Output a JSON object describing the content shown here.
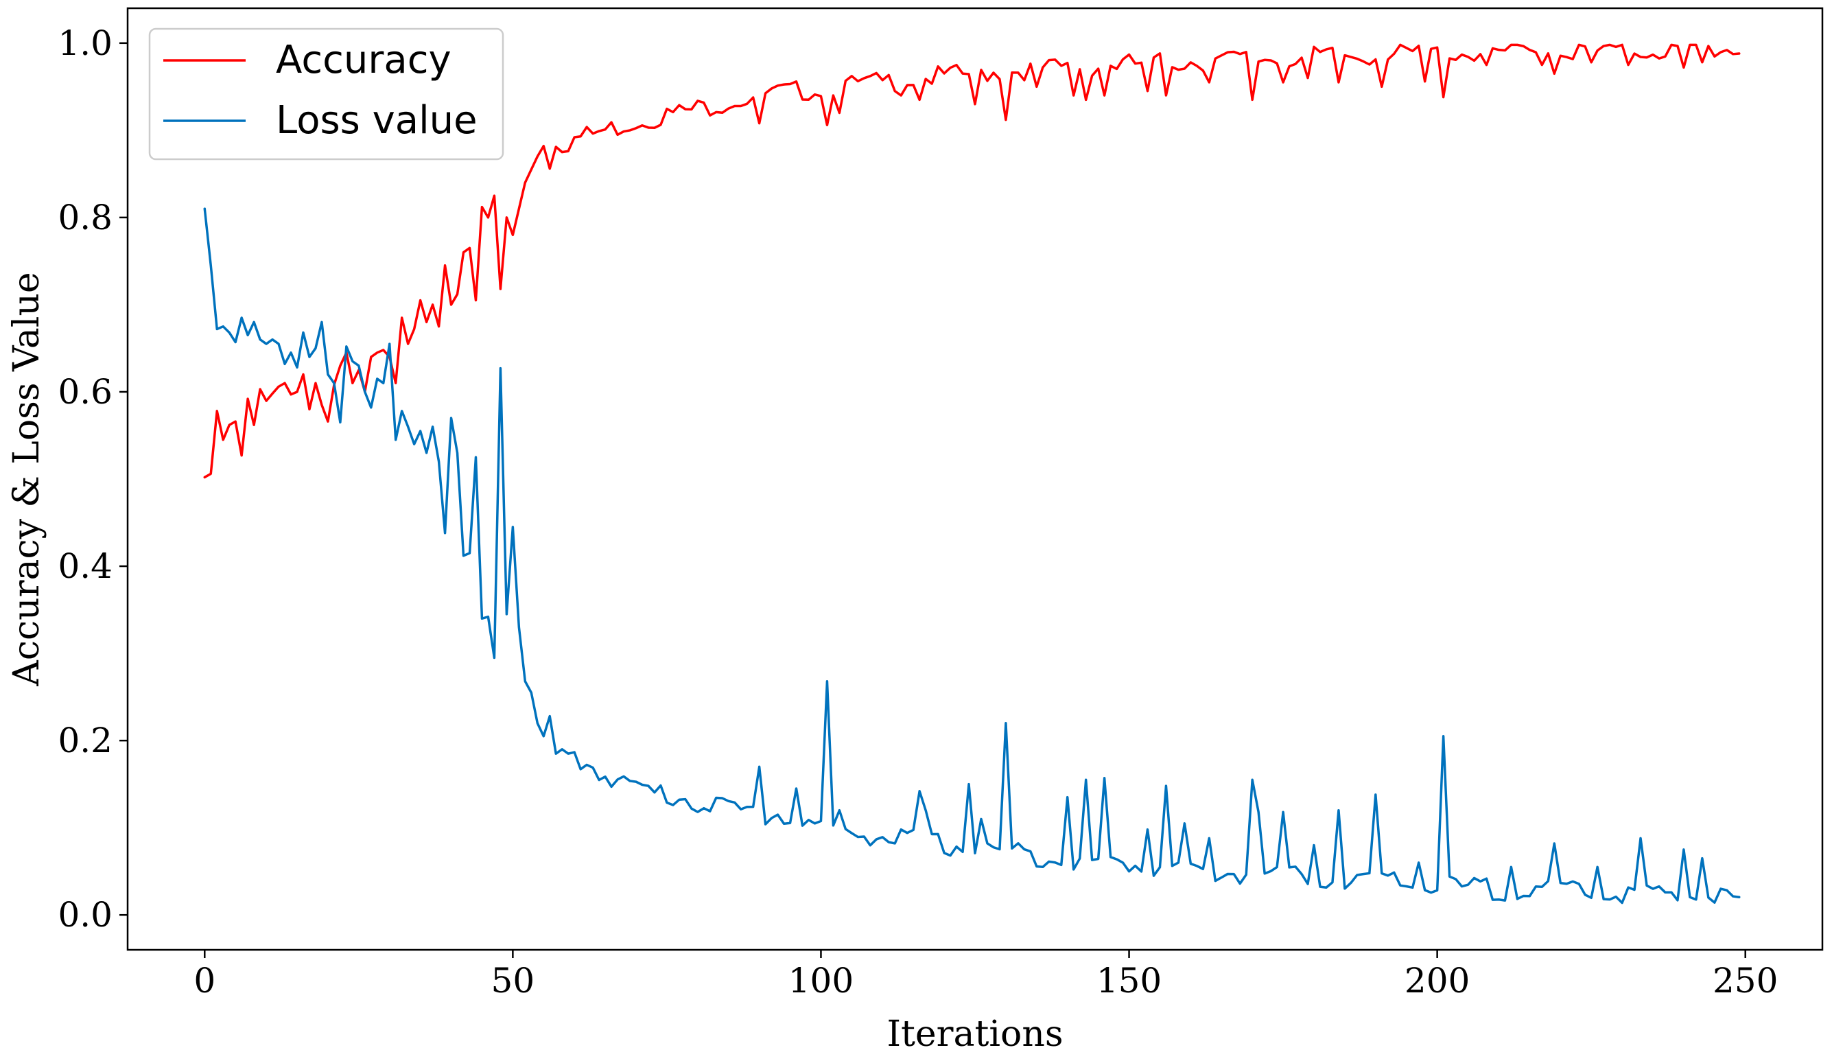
{
  "chart_data": {
    "type": "line",
    "title": "",
    "xlabel": "Iterations",
    "ylabel": "Accuracy & Loss Value",
    "xlim": [
      -12.5,
      262.5
    ],
    "ylim": [
      -0.04,
      1.04
    ],
    "xticks": [
      0,
      50,
      100,
      150,
      200,
      250
    ],
    "yticks": [
      0.0,
      0.2,
      0.4,
      0.6,
      0.8,
      1.0
    ],
    "xtick_labels": [
      "0",
      "50",
      "100",
      "150",
      "200",
      "250"
    ],
    "ytick_labels": [
      "0.0",
      "0.2",
      "0.4",
      "0.6",
      "0.8",
      "1.0"
    ],
    "grid": false,
    "legend_position": "top-left",
    "series": [
      {
        "name": "Accuracy",
        "color": "#ff0000",
        "knots": [
          [
            0,
            0.5
          ],
          [
            10,
            0.59
          ],
          [
            20,
            0.61
          ],
          [
            30,
            0.64
          ],
          [
            40,
            0.72
          ],
          [
            47,
            0.79
          ],
          [
            55,
            0.87
          ],
          [
            60,
            0.89
          ],
          [
            70,
            0.91
          ],
          [
            80,
            0.925
          ],
          [
            90,
            0.94
          ],
          [
            100,
            0.948
          ],
          [
            110,
            0.955
          ],
          [
            120,
            0.962
          ],
          [
            130,
            0.968
          ],
          [
            140,
            0.972
          ],
          [
            150,
            0.976
          ],
          [
            160,
            0.979
          ],
          [
            170,
            0.982
          ],
          [
            180,
            0.984
          ],
          [
            190,
            0.986
          ],
          [
            200,
            0.988
          ],
          [
            210,
            0.989
          ],
          [
            220,
            0.99
          ],
          [
            230,
            0.991
          ],
          [
            240,
            0.992
          ],
          [
            249,
            0.993
          ]
        ],
        "overrides": [
          [
            0,
            0.502
          ],
          [
            1,
            0.506
          ],
          [
            2,
            0.578
          ],
          [
            3,
            0.545
          ],
          [
            4,
            0.562
          ],
          [
            5,
            0.566
          ],
          [
            6,
            0.527
          ],
          [
            7,
            0.592
          ],
          [
            8,
            0.562
          ],
          [
            9,
            0.603
          ],
          [
            11,
            0.598
          ],
          [
            12,
            0.606
          ],
          [
            13,
            0.61
          ],
          [
            14,
            0.597
          ],
          [
            15,
            0.6
          ],
          [
            16,
            0.62
          ],
          [
            17,
            0.58
          ],
          [
            18,
            0.61
          ],
          [
            19,
            0.585
          ],
          [
            20,
            0.566
          ],
          [
            21,
            0.608
          ],
          [
            22,
            0.63
          ],
          [
            23,
            0.645
          ],
          [
            24,
            0.61
          ],
          [
            25,
            0.625
          ],
          [
            26,
            0.6
          ],
          [
            27,
            0.64
          ],
          [
            28,
            0.645
          ],
          [
            29,
            0.648
          ],
          [
            30,
            0.64
          ],
          [
            31,
            0.61
          ],
          [
            32,
            0.685
          ],
          [
            33,
            0.655
          ],
          [
            34,
            0.672
          ],
          [
            35,
            0.705
          ],
          [
            36,
            0.68
          ],
          [
            37,
            0.7
          ],
          [
            38,
            0.675
          ],
          [
            39,
            0.745
          ],
          [
            40,
            0.7
          ],
          [
            41,
            0.712
          ],
          [
            42,
            0.76
          ],
          [
            43,
            0.765
          ],
          [
            44,
            0.705
          ],
          [
            45,
            0.812
          ],
          [
            46,
            0.8
          ],
          [
            47,
            0.825
          ],
          [
            48,
            0.718
          ],
          [
            49,
            0.8
          ],
          [
            50,
            0.78
          ],
          [
            51,
            0.81
          ],
          [
            52,
            0.84
          ],
          [
            53,
            0.855
          ],
          [
            54,
            0.87
          ],
          [
            55,
            0.882
          ],
          [
            56,
            0.856
          ],
          [
            57,
            0.881
          ],
          [
            58,
            0.875
          ],
          [
            90,
            0.908
          ],
          [
            101,
            0.906
          ],
          [
            102,
            0.94
          ],
          [
            103,
            0.92
          ],
          [
            113,
            0.94
          ],
          [
            116,
            0.935
          ],
          [
            125,
            0.93
          ],
          [
            130,
            0.912
          ],
          [
            135,
            0.95
          ],
          [
            141,
            0.94
          ],
          [
            143,
            0.935
          ],
          [
            146,
            0.94
          ],
          [
            153,
            0.945
          ],
          [
            156,
            0.94
          ],
          [
            163,
            0.955
          ],
          [
            170,
            0.935
          ],
          [
            175,
            0.955
          ],
          [
            179,
            0.96
          ],
          [
            184,
            0.955
          ],
          [
            191,
            0.95
          ],
          [
            198,
            0.956
          ],
          [
            201,
            0.938
          ],
          [
            208,
            0.975
          ],
          [
            217,
            0.975
          ],
          [
            219,
            0.965
          ],
          [
            225,
            0.978
          ],
          [
            231,
            0.975
          ],
          [
            240,
            0.972
          ],
          [
            243,
            0.978
          ]
        ]
      },
      {
        "name": "Loss value",
        "color": "#0072bd",
        "knots": [
          [
            0,
            0.81
          ],
          [
            3,
            0.67
          ],
          [
            10,
            0.66
          ],
          [
            20,
            0.63
          ],
          [
            30,
            0.6
          ],
          [
            35,
            0.56
          ],
          [
            40,
            0.5
          ],
          [
            45,
            0.42
          ],
          [
            47,
            0.62
          ],
          [
            50,
            0.33
          ],
          [
            53,
            0.25
          ],
          [
            56,
            0.2
          ],
          [
            60,
            0.18
          ],
          [
            70,
            0.145
          ],
          [
            80,
            0.13
          ],
          [
            90,
            0.115
          ],
          [
            100,
            0.1
          ],
          [
            110,
            0.09
          ],
          [
            120,
            0.08
          ],
          [
            130,
            0.072
          ],
          [
            140,
            0.065
          ],
          [
            150,
            0.058
          ],
          [
            160,
            0.052
          ],
          [
            170,
            0.046
          ],
          [
            180,
            0.042
          ],
          [
            190,
            0.038
          ],
          [
            200,
            0.033
          ],
          [
            210,
            0.029
          ],
          [
            220,
            0.026
          ],
          [
            230,
            0.024
          ],
          [
            240,
            0.022
          ],
          [
            249,
            0.018
          ]
        ],
        "overrides": [
          [
            0,
            0.81
          ],
          [
            1,
            0.745
          ],
          [
            2,
            0.672
          ],
          [
            3,
            0.675
          ],
          [
            4,
            0.668
          ],
          [
            5,
            0.657
          ],
          [
            6,
            0.685
          ],
          [
            7,
            0.665
          ],
          [
            8,
            0.68
          ],
          [
            9,
            0.66
          ],
          [
            10,
            0.655
          ],
          [
            11,
            0.66
          ],
          [
            12,
            0.655
          ],
          [
            13,
            0.632
          ],
          [
            14,
            0.645
          ],
          [
            15,
            0.628
          ],
          [
            16,
            0.668
          ],
          [
            17,
            0.64
          ],
          [
            18,
            0.65
          ],
          [
            19,
            0.68
          ],
          [
            20,
            0.62
          ],
          [
            21,
            0.61
          ],
          [
            22,
            0.565
          ],
          [
            23,
            0.652
          ],
          [
            24,
            0.635
          ],
          [
            25,
            0.63
          ],
          [
            26,
            0.6
          ],
          [
            27,
            0.582
          ],
          [
            28,
            0.615
          ],
          [
            29,
            0.61
          ],
          [
            30,
            0.655
          ],
          [
            31,
            0.545
          ],
          [
            32,
            0.578
          ],
          [
            33,
            0.56
          ],
          [
            34,
            0.54
          ],
          [
            35,
            0.555
          ],
          [
            36,
            0.53
          ],
          [
            37,
            0.56
          ],
          [
            38,
            0.52
          ],
          [
            39,
            0.438
          ],
          [
            40,
            0.57
          ],
          [
            41,
            0.53
          ],
          [
            42,
            0.412
          ],
          [
            43,
            0.415
          ],
          [
            44,
            0.525
          ],
          [
            45,
            0.34
          ],
          [
            46,
            0.342
          ],
          [
            47,
            0.295
          ],
          [
            48,
            0.627
          ],
          [
            49,
            0.345
          ],
          [
            50,
            0.445
          ],
          [
            51,
            0.33
          ],
          [
            52,
            0.268
          ],
          [
            53,
            0.255
          ],
          [
            54,
            0.22
          ],
          [
            55,
            0.205
          ],
          [
            56,
            0.228
          ],
          [
            57,
            0.185
          ],
          [
            58,
            0.19
          ],
          [
            59,
            0.185
          ],
          [
            90,
            0.17
          ],
          [
            93,
            0.115
          ],
          [
            96,
            0.145
          ],
          [
            101,
            0.268
          ],
          [
            103,
            0.12
          ],
          [
            113,
            0.098
          ],
          [
            116,
            0.142
          ],
          [
            117,
            0.12
          ],
          [
            124,
            0.15
          ],
          [
            126,
            0.11
          ],
          [
            130,
            0.22
          ],
          [
            140,
            0.135
          ],
          [
            143,
            0.155
          ],
          [
            146,
            0.157
          ],
          [
            153,
            0.098
          ],
          [
            156,
            0.148
          ],
          [
            159,
            0.105
          ],
          [
            163,
            0.088
          ],
          [
            170,
            0.155
          ],
          [
            171,
            0.118
          ],
          [
            175,
            0.118
          ],
          [
            180,
            0.08
          ],
          [
            184,
            0.12
          ],
          [
            190,
            0.138
          ],
          [
            197,
            0.06
          ],
          [
            201,
            0.205
          ],
          [
            212,
            0.055
          ],
          [
            219,
            0.082
          ],
          [
            226,
            0.055
          ],
          [
            233,
            0.088
          ],
          [
            240,
            0.075
          ],
          [
            243,
            0.065
          ],
          [
            246,
            0.03
          ]
        ]
      }
    ]
  }
}
